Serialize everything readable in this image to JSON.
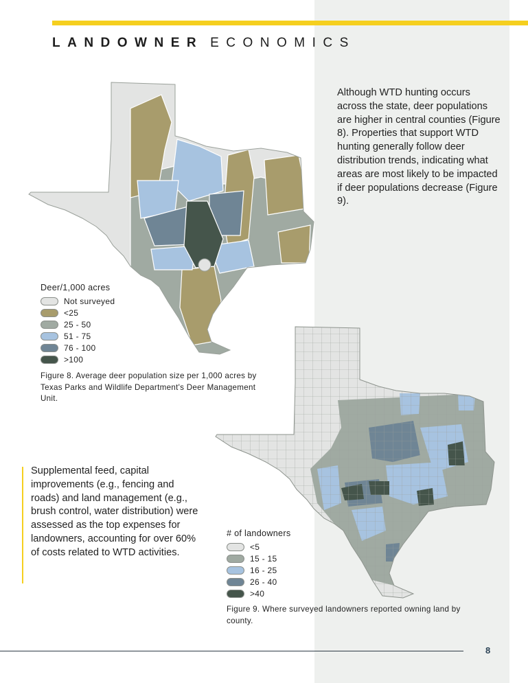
{
  "header": {
    "title_bold": "LANDOWNER",
    "title_light": "ECONOMICS"
  },
  "intro_paragraph": "Although WTD hunting occurs across the state, deer populations are higher in central counties (Figure 8). Properties that support WTD hunting generally follow deer distribution trends, indicating what areas are most likely to be impacted if deer populations decrease (Figure 9).",
  "expenses_paragraph": "Supplemental feed, capital improvements (e.g., fencing and roads) and land management (e.g., brush control, water distribution) were assessed as the top expenses for landowners, accounting for over 60% of costs related to WTD activities.",
  "figure8": {
    "legend_title": "Deer/1,000 acres",
    "legend": [
      {
        "label": "Not surveyed",
        "color": "#e3e4e3"
      },
      {
        "label": "<25",
        "color": "#a89c6c"
      },
      {
        "label": "25 - 50",
        "color": "#a0aaa2"
      },
      {
        "label": "51 - 75",
        "color": "#a7c3e0"
      },
      {
        "label": "76 - 100",
        "color": "#6f8595"
      },
      {
        "label": ">100",
        "color": "#45554b"
      }
    ],
    "caption": "Figure 8. Average deer population size per 1,000 acres by Texas Parks and Wildlife Department's Deer Management Unit."
  },
  "figure9": {
    "legend_title": "# of landowners",
    "legend": [
      {
        "label": "<5",
        "color": "#e3e4e3"
      },
      {
        "label": "15 - 15",
        "color": "#a0aaa2"
      },
      {
        "label": "16 - 25",
        "color": "#a7c3e0"
      },
      {
        "label": "26 - 40",
        "color": "#6f8595"
      },
      {
        "label": ">40",
        "color": "#45554b"
      }
    ],
    "caption": "Figure 9. Where surveyed landowners reported owning land by county."
  },
  "page_number": "8",
  "colors": {
    "accent": "#f5cf1f",
    "side_panel": "#eef0ee"
  }
}
